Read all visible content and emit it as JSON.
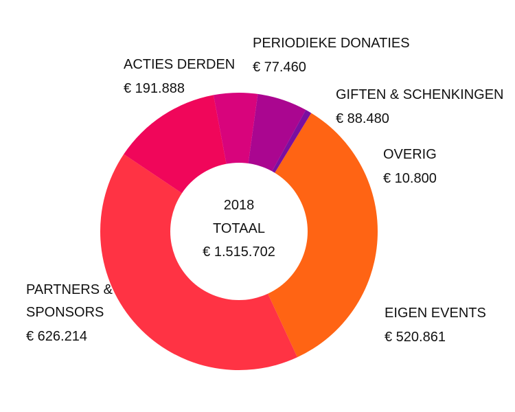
{
  "chart_data": {
    "type": "pie",
    "donut": true,
    "center": {
      "year": "2018",
      "label": "TOTAAL",
      "total": "€ 1.515.702",
      "total_value": 1515702
    },
    "slices": [
      {
        "key": "eigen-events",
        "label": [
          "EIGEN EVENTS"
        ],
        "value_text": "€ 520.861",
        "value": 520861,
        "color": "#ff6414"
      },
      {
        "key": "partners-sponsors",
        "label": [
          "PARTNERS &",
          "SPONSORS"
        ],
        "value_text": "€ 626.214",
        "value": 626214,
        "color": "#ff3344"
      },
      {
        "key": "acties-derden",
        "label": [
          "ACTIES DERDEN"
        ],
        "value_text": "€ 191.888",
        "value": 191888,
        "color": "#f0065a"
      },
      {
        "key": "periodieke-donaties",
        "label": [
          "PERIODIEKE DONATIES"
        ],
        "value_text": "€ 77.460",
        "value": 77460,
        "color": "#d8047c"
      },
      {
        "key": "giften-schenkingen",
        "label": [
          "GIFTEN & SCHENKINGEN"
        ],
        "value_text": "€ 88.480",
        "value": 88480,
        "color": "#aa0690"
      },
      {
        "key": "overig",
        "label": [
          "OVERIG"
        ],
        "value_text": "€ 10.800",
        "value": 10800,
        "color": "#7a0fa0"
      }
    ]
  }
}
